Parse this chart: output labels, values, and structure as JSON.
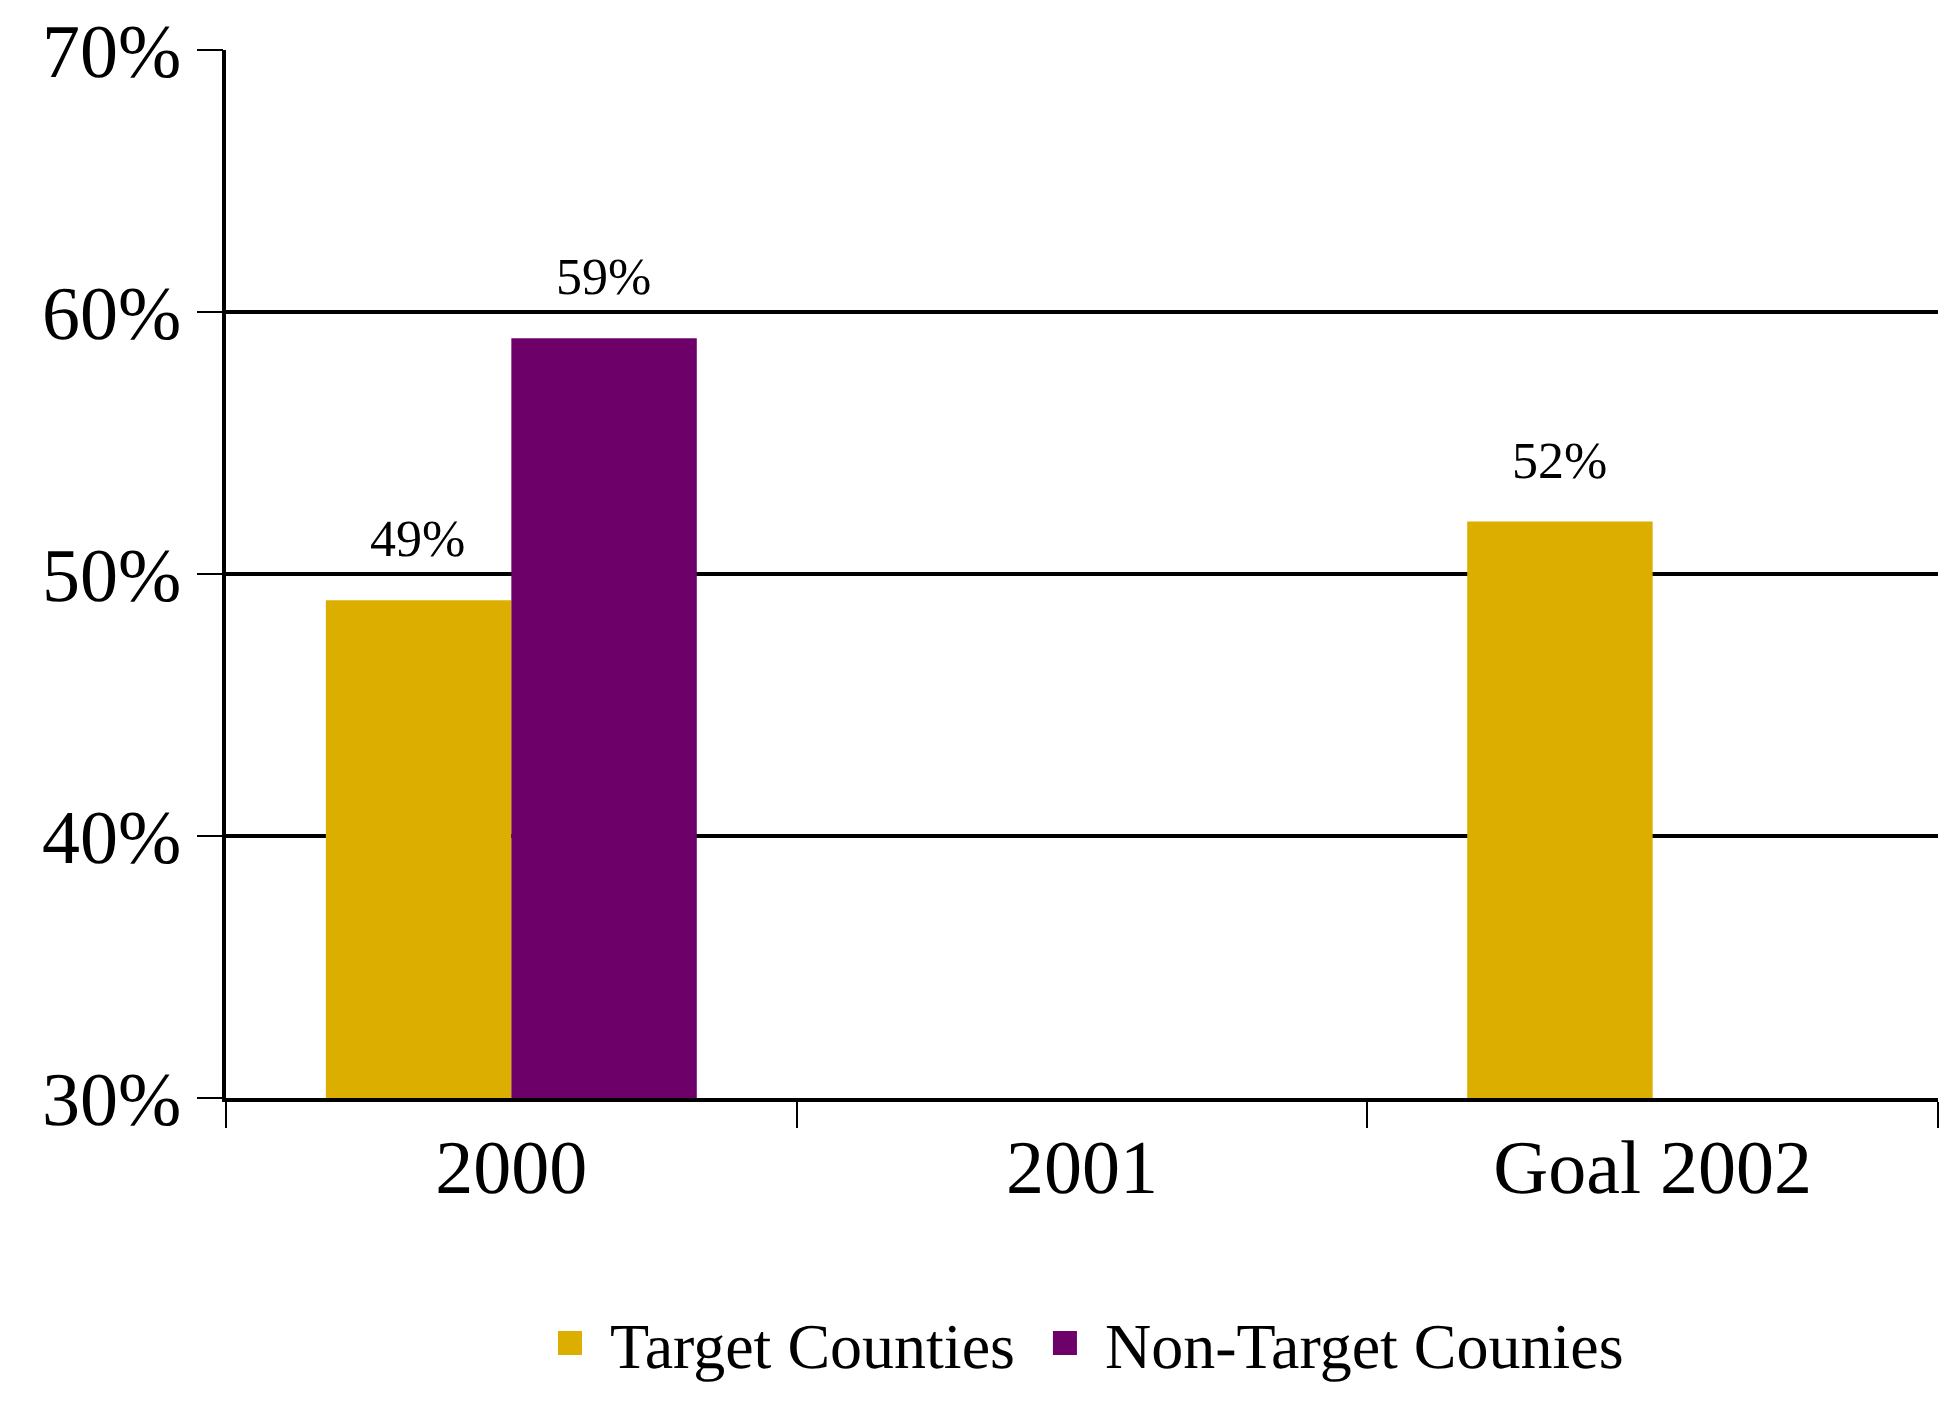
{
  "chart_data": {
    "type": "bar",
    "categories": [
      "2000",
      "2001",
      "Goal 2002"
    ],
    "series": [
      {
        "name": "Target Counties",
        "color": "#dcae00",
        "values": [
          49,
          null,
          52
        ],
        "value_labels": [
          "49%",
          null,
          "52%"
        ]
      },
      {
        "name": "Non-Target Counies",
        "color": "#6e006a",
        "values": [
          59,
          null,
          null
        ],
        "value_labels": [
          "59%",
          null,
          null
        ]
      }
    ],
    "ylim": [
      30,
      70
    ],
    "yticks": [
      {
        "value": 30,
        "label": "30%"
      },
      {
        "value": 40,
        "label": "40%"
      },
      {
        "value": 50,
        "label": "50%"
      },
      {
        "value": 60,
        "label": "60%"
      },
      {
        "value": 70,
        "label": "70%"
      }
    ],
    "grid": "y",
    "legend": "bottom"
  }
}
